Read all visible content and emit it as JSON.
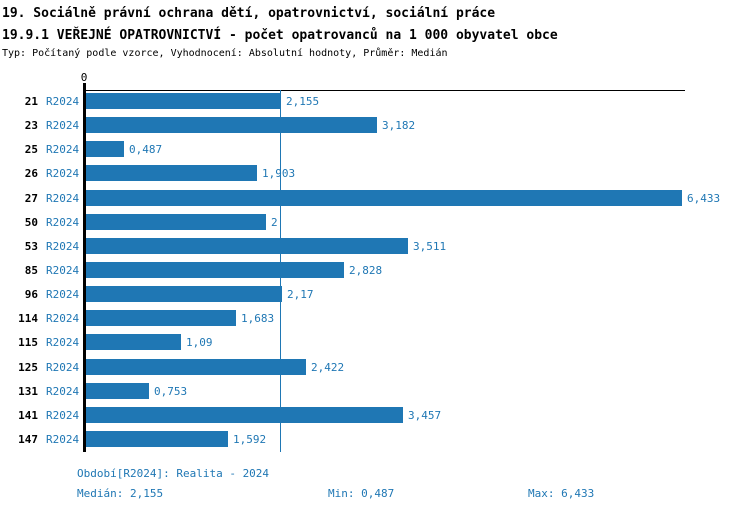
{
  "header": {
    "title_line1": "19. Sociálně právní ochrana dětí, opatrovnictví, sociální práce",
    "title_line2": "19.9.1 VEŘEJNÉ OPATROVNICTVÍ - počet opatrovanců na 1 000 obyvatel obce",
    "subtitle": "Typ: Počítaný podle vzorce, Vyhodnocení: Absolutní hodnoty, Průměr: Medián"
  },
  "chart_data": {
    "type": "bar",
    "orientation": "horizontal",
    "title": "19.9.1 VEŘEJNÉ OPATROVNICTVÍ - počet opatrovanců na 1 000 obyvatel obce",
    "axis": {
      "zero_label": "0",
      "x_min": 0,
      "x_max_visible": 6.5,
      "grid": false
    },
    "series_label": "R2024",
    "bar_color": "#1f77b4",
    "text_blue": "#1f77b4",
    "median_value": 2.155,
    "rows": [
      {
        "id": "21",
        "period": "R2024",
        "value": 2.155,
        "label": "2,155"
      },
      {
        "id": "23",
        "period": "R2024",
        "value": 3.182,
        "label": "3,182"
      },
      {
        "id": "25",
        "period": "R2024",
        "value": 0.487,
        "label": "0,487"
      },
      {
        "id": "26",
        "period": "R2024",
        "value": 1.903,
        "label": "1,903"
      },
      {
        "id": "27",
        "period": "R2024",
        "value": 6.433,
        "label": "6,433"
      },
      {
        "id": "50",
        "period": "R2024",
        "value": 2,
        "label": "2"
      },
      {
        "id": "53",
        "period": "R2024",
        "value": 3.511,
        "label": "3,511"
      },
      {
        "id": "85",
        "period": "R2024",
        "value": 2.828,
        "label": "2,828"
      },
      {
        "id": "96",
        "period": "R2024",
        "value": 2.17,
        "label": "2,17"
      },
      {
        "id": "114",
        "period": "R2024",
        "value": 1.683,
        "label": "1,683"
      },
      {
        "id": "115",
        "period": "R2024",
        "value": 1.09,
        "label": "1,09"
      },
      {
        "id": "125",
        "period": "R2024",
        "value": 2.422,
        "label": "2,422"
      },
      {
        "id": "131",
        "period": "R2024",
        "value": 0.753,
        "label": "0,753"
      },
      {
        "id": "141",
        "period": "R2024",
        "value": 3.457,
        "label": "3,457"
      },
      {
        "id": "147",
        "period": "R2024",
        "value": 1.592,
        "label": "1,592"
      }
    ]
  },
  "footer": {
    "period_label": "Období[R2024]: Realita - 2024",
    "median_label": "Medián: 2,155",
    "min_label": "Min: 0,487",
    "max_label": "Max: 6,433"
  }
}
